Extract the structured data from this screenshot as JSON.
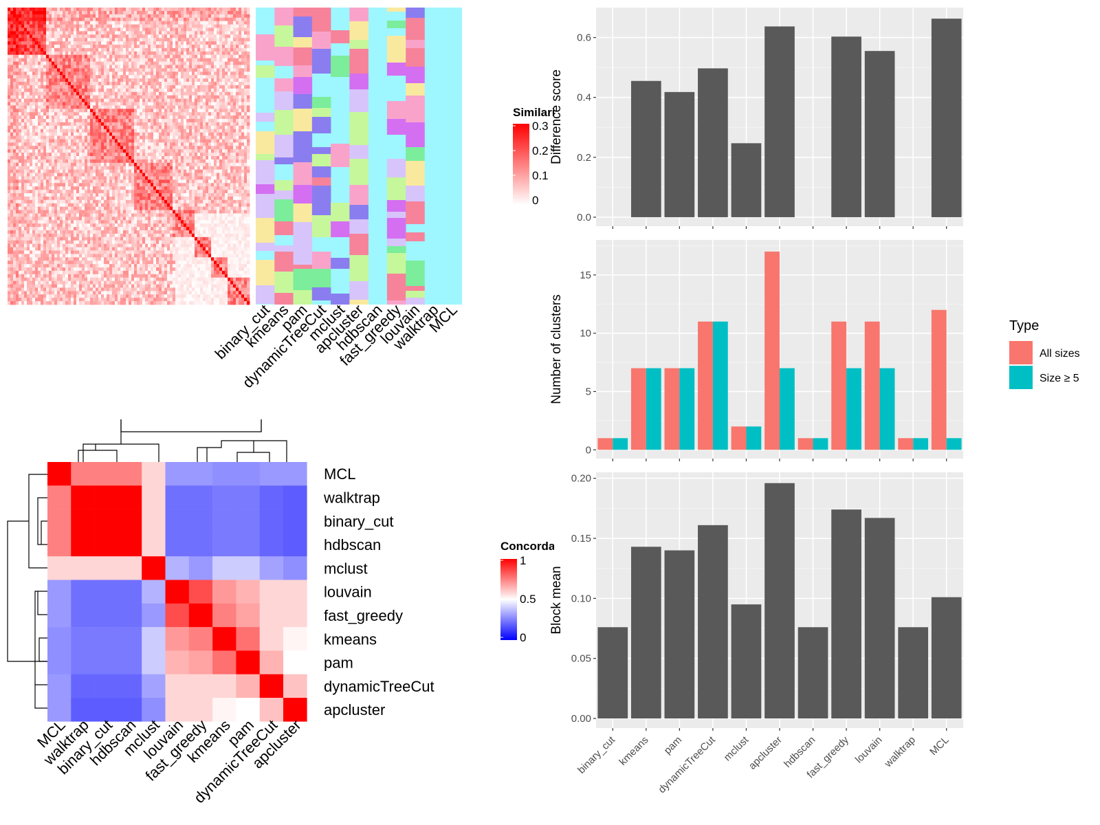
{
  "chart_data": [
    {
      "type": "heatmap",
      "panel": "similarity-heatmap-with-cluster-annotations",
      "legend_title": "Similarity",
      "legend_ticks": [
        "0.3",
        "0.2",
        "0.1",
        "0"
      ],
      "legend_colors": [
        "#ffffff",
        "#ff0000"
      ],
      "annotation_columns": [
        "binary_cut",
        "kmeans",
        "pam",
        "dynamicTreeCut",
        "mclust",
        "apcluster",
        "hdbscan",
        "fast_greedy",
        "louvain",
        "walktrap",
        "MCL"
      ],
      "background_cluster_color": "#9ef6ff",
      "palette": [
        "#c6f79b",
        "#f9a3cb",
        "#d46ff2",
        "#f6839a",
        "#f9e99f",
        "#8a7df0",
        "#7bed9b",
        "#d7c4fa"
      ]
    },
    {
      "type": "heatmap",
      "panel": "concordance-heatmap",
      "legend_title": "Concordance",
      "legend_ticks": [
        "1",
        "0.5",
        "0"
      ],
      "legend_colors": [
        "#0000ff",
        "#ffffff",
        "#ff0000"
      ],
      "rows": [
        "MCL",
        "walktrap",
        "binary_cut",
        "hdbscan",
        "mclust",
        "louvain",
        "fast_greedy",
        "kmeans",
        "pam",
        "dynamicTreeCut",
        "apcluster"
      ],
      "columns": [
        "MCL",
        "walktrap",
        "binary_cut",
        "hdbscan",
        "mclust",
        "louvain",
        "fast_greedy",
        "kmeans",
        "pam",
        "dynamicTreeCut",
        "apcluster"
      ],
      "values": [
        [
          1.0,
          0.75,
          0.75,
          0.75,
          0.58,
          0.3,
          0.3,
          0.28,
          0.28,
          0.3,
          0.3
        ],
        [
          0.75,
          1.0,
          1.0,
          1.0,
          0.58,
          0.22,
          0.22,
          0.24,
          0.24,
          0.2,
          0.18
        ],
        [
          0.75,
          1.0,
          1.0,
          1.0,
          0.58,
          0.22,
          0.22,
          0.24,
          0.24,
          0.2,
          0.18
        ],
        [
          0.75,
          1.0,
          1.0,
          1.0,
          0.58,
          0.22,
          0.22,
          0.24,
          0.24,
          0.2,
          0.18
        ],
        [
          0.58,
          0.58,
          0.58,
          0.58,
          1.0,
          0.35,
          0.3,
          0.4,
          0.4,
          0.32,
          0.28
        ],
        [
          0.3,
          0.22,
          0.22,
          0.22,
          0.35,
          1.0,
          0.85,
          0.7,
          0.65,
          0.58,
          0.58
        ],
        [
          0.3,
          0.22,
          0.22,
          0.22,
          0.3,
          0.85,
          1.0,
          0.75,
          0.68,
          0.58,
          0.58
        ],
        [
          0.28,
          0.24,
          0.24,
          0.24,
          0.4,
          0.7,
          0.75,
          1.0,
          0.78,
          0.58,
          0.52
        ],
        [
          0.28,
          0.24,
          0.24,
          0.24,
          0.4,
          0.65,
          0.68,
          0.78,
          1.0,
          0.65,
          0.5
        ],
        [
          0.3,
          0.2,
          0.2,
          0.2,
          0.32,
          0.58,
          0.58,
          0.58,
          0.65,
          1.0,
          0.62
        ],
        [
          0.3,
          0.18,
          0.18,
          0.18,
          0.28,
          0.58,
          0.58,
          0.52,
          0.5,
          0.62,
          1.0
        ]
      ]
    },
    {
      "type": "bar",
      "panel": "difference-score",
      "categories": [
        "binary_cut",
        "kmeans",
        "pam",
        "dynamicTreeCut",
        "mclust",
        "apcluster",
        "hdbscan",
        "fast_greedy",
        "louvain",
        "walktrap",
        "MCL"
      ],
      "values": [
        null,
        0.455,
        0.418,
        0.497,
        0.247,
        0.637,
        null,
        0.603,
        0.555,
        null,
        0.663
      ],
      "ylabel": "Difference score",
      "ylim": [
        -0.03,
        0.7
      ],
      "yticks": [
        "0.0",
        "0.2",
        "0.4",
        "0.6"
      ],
      "grid": true,
      "bar_color": "#595959"
    },
    {
      "type": "bar",
      "panel": "number-of-clusters",
      "categories": [
        "binary_cut",
        "kmeans",
        "pam",
        "dynamicTreeCut",
        "mclust",
        "apcluster",
        "hdbscan",
        "fast_greedy",
        "louvain",
        "walktrap",
        "MCL"
      ],
      "series": [
        {
          "name": "All sizes",
          "values": [
            1,
            7,
            7,
            11,
            2,
            17,
            1,
            11,
            11,
            1,
            12
          ],
          "color": "#f8766d"
        },
        {
          "name": "Size ≥ 5",
          "values": [
            1,
            7,
            7,
            11,
            2,
            7,
            1,
            7,
            7,
            1,
            1
          ],
          "color": "#00bfc4"
        }
      ],
      "ylabel": "Number of clusters",
      "ylim": [
        -0.75,
        18
      ],
      "yticks": [
        "0",
        "5",
        "10",
        "15"
      ],
      "legend_title": "Type",
      "legend": "right",
      "grid": true
    },
    {
      "type": "bar",
      "panel": "block-mean",
      "categories": [
        "binary_cut",
        "kmeans",
        "pam",
        "dynamicTreeCut",
        "mclust",
        "apcluster",
        "hdbscan",
        "fast_greedy",
        "louvain",
        "walktrap",
        "MCL"
      ],
      "values": [
        0.076,
        0.143,
        0.14,
        0.161,
        0.095,
        0.196,
        0.076,
        0.174,
        0.167,
        0.076,
        0.101
      ],
      "ylabel": "Block mean",
      "ylim": [
        -0.008,
        0.205
      ],
      "yticks": [
        "0.00",
        "0.05",
        "0.10",
        "0.15",
        "0.20"
      ],
      "xlabels": [
        "binary_cut",
        "kmeans",
        "pam",
        "dynamicTreeCut",
        "mclust",
        "apcluster",
        "hdbscan",
        "fast_greedy",
        "louvain",
        "walktrap",
        "MCL"
      ],
      "grid": true,
      "bar_color": "#595959"
    }
  ]
}
